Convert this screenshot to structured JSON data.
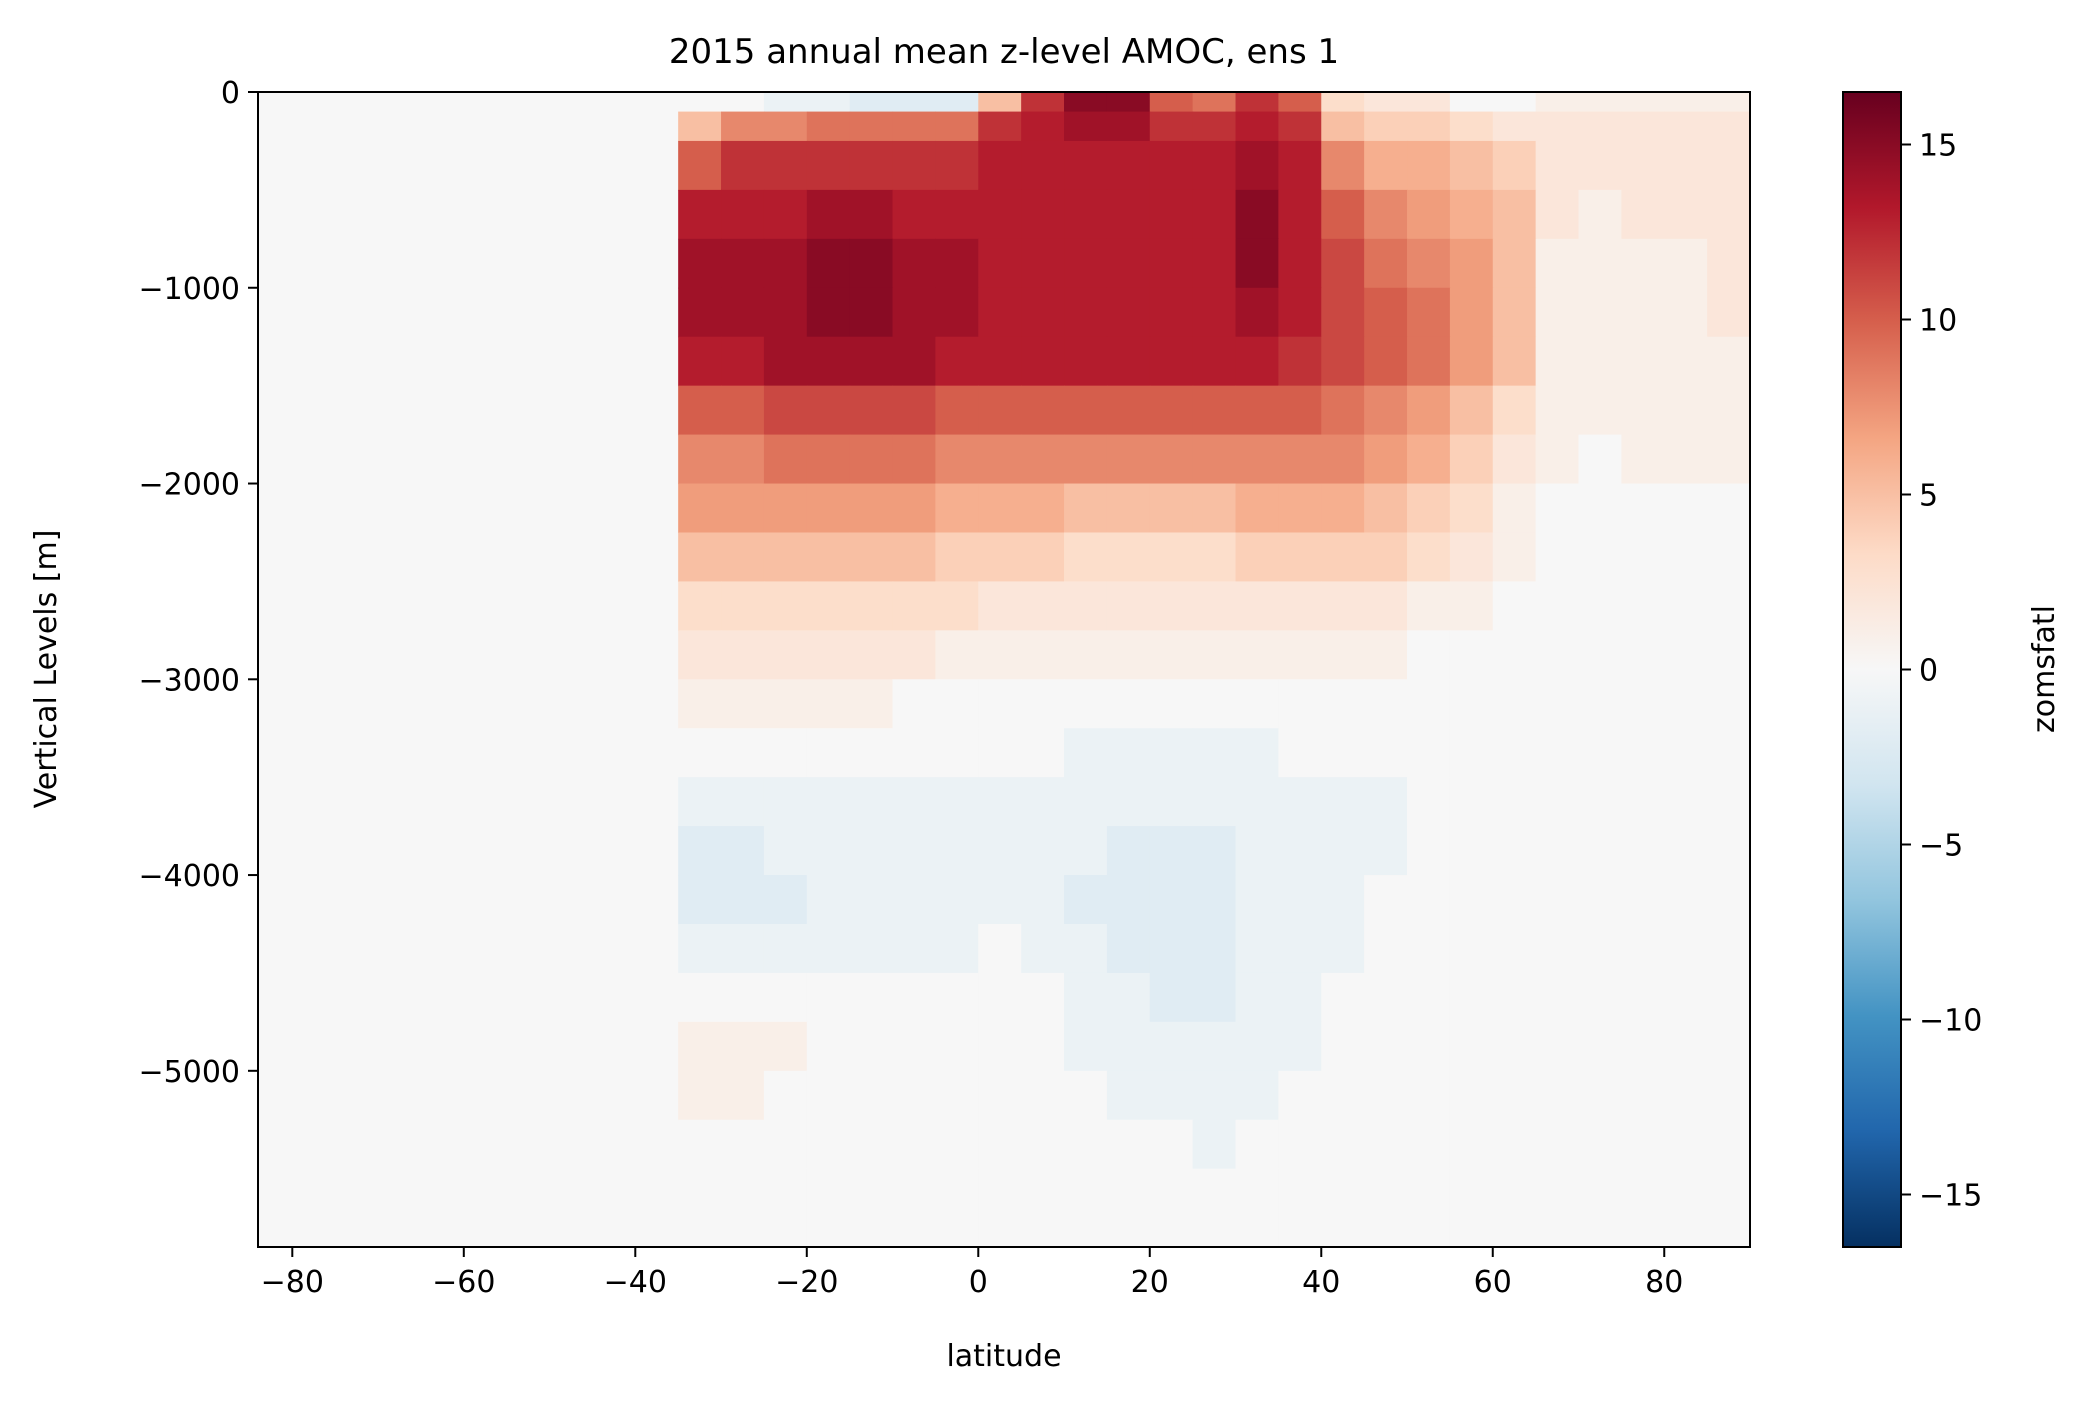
{
  "chart_data": {
    "type": "heatmap",
    "title": "2015 annual mean z-level AMOC, ens 1",
    "xlabel": "latitude",
    "ylabel": "Vertical Levels [m]",
    "xlim": [
      -84,
      90
    ],
    "ylim": [
      -5900,
      0
    ],
    "x_ticks": [
      -80,
      -60,
      -40,
      -20,
      0,
      20,
      40,
      60,
      80
    ],
    "x_tick_labels": [
      "−80",
      "−60",
      "−40",
      "−20",
      "0",
      "20",
      "40",
      "60",
      "80"
    ],
    "y_ticks": [
      0,
      -1000,
      -2000,
      -3000,
      -4000,
      -5000
    ],
    "y_tick_labels": [
      "0",
      "−1000",
      "−2000",
      "−3000",
      "−4000",
      "−5000"
    ],
    "colorbar": {
      "label": "zomsfatl",
      "range": [
        -16.5,
        16.5
      ],
      "ticks": [
        15,
        10,
        5,
        0,
        -5,
        -10,
        -15
      ],
      "tick_labels": [
        "15",
        "10",
        "5",
        "0",
        "−5",
        "−10",
        "−15"
      ],
      "colormap": "RdBu_r",
      "colormap_stops": [
        "#053061",
        "#2166ac",
        "#4393c3",
        "#92c5de",
        "#d1e5f0",
        "#f7f7f7",
        "#fddbc7",
        "#f4a582",
        "#d6604d",
        "#b2182b",
        "#67001f"
      ]
    },
    "grid": false,
    "data_extent_latitude": [
      -35,
      90
    ],
    "masked_value": 0,
    "depths": [
      0,
      100,
      250,
      500,
      750,
      1000,
      1250,
      1500,
      1750,
      2000,
      2250,
      2500,
      2750,
      3000,
      3250,
      3500,
      3750,
      4000,
      4250,
      4500,
      4750,
      5000,
      5250,
      5500,
      5900
    ],
    "latitudes": [
      -35,
      -30,
      -25,
      -20,
      -15,
      -10,
      -5,
      0,
      5,
      10,
      15,
      20,
      25,
      30,
      35,
      40,
      45,
      50,
      55,
      60,
      65,
      70,
      75,
      80,
      85,
      90
    ],
    "values": [
      [
        0,
        0,
        -1,
        -1,
        -2,
        -2,
        -2,
        5,
        12,
        15,
        15,
        10,
        9,
        12,
        10,
        3,
        2,
        2,
        0,
        0,
        1,
        1,
        1,
        1,
        1,
        1
      ],
      [
        5,
        8,
        8,
        9,
        9,
        9,
        9,
        12,
        13,
        14,
        14,
        12,
        12,
        13,
        12,
        5,
        4,
        4,
        3,
        2,
        2,
        2,
        2,
        2,
        2,
        2
      ],
      [
        10,
        12,
        12,
        12,
        12,
        12,
        12,
        13,
        13,
        13,
        13,
        13,
        13,
        14,
        13,
        8,
        6,
        6,
        5,
        4,
        2,
        2,
        2,
        2,
        2,
        2
      ],
      [
        13,
        13,
        13,
        14,
        14,
        13,
        13,
        13,
        13,
        13,
        13,
        13,
        13,
        15,
        13,
        10,
        8,
        7,
        6,
        5,
        2,
        1,
        2,
        2,
        2,
        2
      ],
      [
        14,
        14,
        14,
        15,
        15,
        14,
        14,
        13,
        13,
        13,
        13,
        13,
        13,
        15,
        13,
        11,
        9,
        8,
        7,
        5,
        1,
        1,
        1,
        1,
        2,
        2
      ],
      [
        14,
        14,
        14,
        15,
        15,
        14,
        14,
        13,
        13,
        13,
        13,
        13,
        13,
        14,
        13,
        11,
        10,
        9,
        7,
        5,
        1,
        1,
        1,
        1,
        2,
        2
      ],
      [
        13,
        13,
        14,
        14,
        14,
        14,
        13,
        13,
        13,
        13,
        13,
        13,
        13,
        13,
        12,
        11,
        10,
        9,
        7,
        5,
        1,
        1,
        1,
        1,
        1,
        1
      ],
      [
        10,
        10,
        11,
        11,
        11,
        11,
        10,
        10,
        10,
        10,
        10,
        10,
        10,
        10,
        10,
        9,
        8,
        7,
        5,
        3,
        1,
        1,
        1,
        1,
        1,
        1
      ],
      [
        8,
        8,
        9,
        9,
        9,
        9,
        8,
        8,
        8,
        8,
        8,
        8,
        8,
        8,
        8,
        8,
        7,
        6,
        4,
        2,
        1,
        0,
        1,
        1,
        1,
        1
      ],
      [
        7,
        7,
        7,
        7,
        7,
        7,
        6,
        6,
        6,
        5,
        5,
        5,
        5,
        6,
        6,
        6,
        5,
        4,
        3,
        1,
        0,
        0,
        0,
        0,
        0,
        0
      ],
      [
        5,
        5,
        5,
        5,
        5,
        5,
        4,
        4,
        4,
        3,
        3,
        3,
        3,
        4,
        4,
        4,
        4,
        3,
        2,
        1,
        0,
        0,
        0,
        0,
        0,
        0
      ],
      [
        3,
        3,
        3,
        3,
        3,
        3,
        3,
        2,
        2,
        2,
        2,
        2,
        2,
        2,
        2,
        2,
        2,
        1,
        1,
        0,
        0,
        0,
        0,
        0,
        0,
        0
      ],
      [
        2,
        2,
        2,
        2,
        2,
        2,
        1,
        1,
        1,
        1,
        1,
        1,
        1,
        1,
        1,
        1,
        1,
        0,
        0,
        0,
        0,
        0,
        0,
        0,
        0,
        0
      ],
      [
        1,
        1,
        1,
        1,
        1,
        0,
        0,
        0,
        0,
        0,
        0,
        0,
        0,
        0,
        0,
        0,
        0,
        0,
        0,
        0,
        0,
        0,
        0,
        0,
        0,
        0
      ],
      [
        0,
        0,
        0,
        0,
        0,
        0,
        0,
        0,
        0,
        -1,
        -1,
        -1,
        -1,
        -1,
        0,
        0,
        0,
        0,
        0,
        0,
        0,
        0,
        0,
        0,
        0,
        0
      ],
      [
        -1,
        -1,
        -1,
        -1,
        -1,
        -1,
        -1,
        -1,
        -1,
        -1,
        -1,
        -1,
        -1,
        -1,
        -1,
        -1,
        -1,
        0,
        0,
        0,
        0,
        0,
        0,
        0,
        0,
        0
      ],
      [
        -2,
        -2,
        -1,
        -1,
        -1,
        -1,
        -1,
        -1,
        -1,
        -1,
        -2,
        -2,
        -2,
        -1,
        -1,
        -1,
        -1,
        0,
        0,
        0,
        0,
        0,
        0,
        0,
        0,
        0
      ],
      [
        -2,
        -2,
        -2,
        -1,
        -1,
        -1,
        -1,
        -1,
        -1,
        -2,
        -2,
        -2,
        -2,
        -1,
        -1,
        -1,
        0,
        0,
        0,
        0,
        0,
        0,
        0,
        0,
        0,
        0
      ],
      [
        -1,
        -1,
        -1,
        -1,
        -1,
        -1,
        -1,
        0,
        -1,
        -1,
        -2,
        -2,
        -2,
        -1,
        -1,
        -1,
        0,
        0,
        0,
        0,
        0,
        0,
        0,
        0,
        0,
        0
      ],
      [
        0,
        0,
        0,
        0,
        0,
        0,
        0,
        0,
        0,
        -1,
        -1,
        -2,
        -2,
        -1,
        -1,
        0,
        0,
        0,
        0,
        0,
        0,
        0,
        0,
        0,
        0,
        0
      ],
      [
        1,
        1,
        1,
        0,
        0,
        0,
        0,
        0,
        0,
        -1,
        -1,
        -1,
        -1,
        -1,
        -1,
        0,
        0,
        0,
        0,
        0,
        0,
        0,
        0,
        0,
        0,
        0
      ],
      [
        1,
        1,
        0,
        0,
        0,
        0,
        0,
        0,
        0,
        0,
        -1,
        -1,
        -1,
        -1,
        0,
        0,
        0,
        0,
        0,
        0,
        0,
        0,
        0,
        0,
        0,
        0
      ],
      [
        0,
        0,
        0,
        0,
        0,
        0,
        0,
        0,
        0,
        0,
        0,
        0,
        -1,
        0,
        0,
        0,
        0,
        0,
        0,
        0,
        0,
        0,
        0,
        0,
        0,
        0
      ],
      [
        0,
        0,
        0,
        0,
        0,
        0,
        0,
        0,
        0,
        0,
        0,
        0,
        0,
        0,
        0,
        0,
        0,
        0,
        0,
        0,
        0,
        0,
        0,
        0,
        0,
        0
      ]
    ]
  }
}
